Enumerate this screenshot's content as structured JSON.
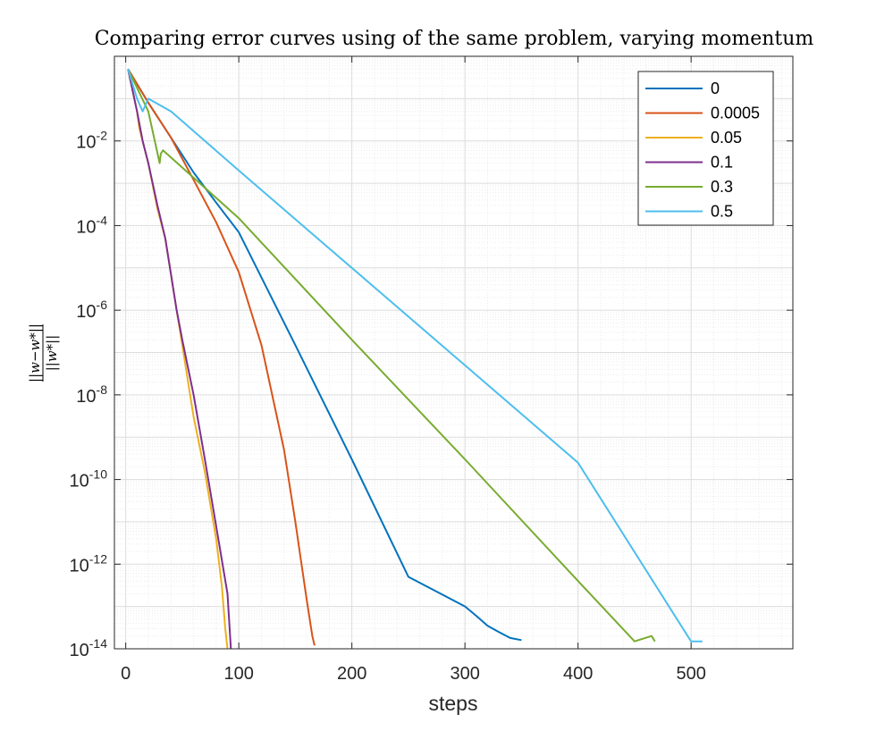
{
  "chart_data": {
    "type": "line",
    "title": "Comparing error curves using of the same problem, varying momentum",
    "xlabel": "steps",
    "ylabel_numerator": "||w−w*||",
    "ylabel_denominator": "||w*||",
    "xscale": "linear",
    "yscale": "log",
    "xlim": [
      -10,
      590
    ],
    "ylim": [
      1e-14,
      1
    ],
    "grid": "on (major + minor)",
    "legend_placement": "top-right",
    "x_ticks": [
      0,
      100,
      200,
      300,
      400,
      500
    ],
    "x_tick_labels": [
      "0",
      "100",
      "200",
      "300",
      "400",
      "500"
    ],
    "y_ticks": [
      -14,
      -12,
      -10,
      -8,
      -6,
      -4,
      -2
    ],
    "y_tick_labels": [
      {
        "base": "10",
        "exp": "-14"
      },
      {
        "base": "10",
        "exp": "-12"
      },
      {
        "base": "10",
        "exp": "-10"
      },
      {
        "base": "10",
        "exp": "-8"
      },
      {
        "base": "10",
        "exp": "-6"
      },
      {
        "base": "10",
        "exp": "-4"
      },
      {
        "base": "10",
        "exp": "-2"
      }
    ],
    "series": [
      {
        "name": "0",
        "color": "#0072BD",
        "x": [
          2,
          20,
          40,
          60,
          80,
          100,
          150,
          200,
          250,
          300,
          310,
          320,
          330,
          340,
          350
        ],
        "y": [
          0.5,
          0.08,
          0.012,
          0.0018,
          0.00035,
          7e-05,
          1.5e-07,
          3e-10,
          5e-13,
          1e-13,
          6e-14,
          3.5e-14,
          2.5e-14,
          1.8e-14,
          1.6e-14
        ]
      },
      {
        "name": "0.0005",
        "color": "#D95319",
        "x": [
          2,
          20,
          40,
          60,
          80,
          100,
          120,
          140,
          150,
          160,
          165,
          167
        ],
        "y": [
          0.5,
          0.08,
          0.012,
          0.0012,
          0.00012,
          8e-06,
          1.5e-07,
          5e-10,
          1e-11,
          1.5e-13,
          2e-14,
          1.2e-14
        ]
      },
      {
        "name": "0.05",
        "color": "#EDB120",
        "x": [
          2,
          10,
          12,
          20,
          28,
          35,
          40,
          45,
          50,
          60,
          70,
          80,
          85,
          88,
          90
        ],
        "y": [
          0.5,
          0.05,
          0.02,
          0.003,
          0.00025,
          5e-05,
          7e-06,
          1e-06,
          1.5e-07,
          3e-09,
          1.5e-10,
          4e-12,
          3e-13,
          3e-14,
          1e-14
        ]
      },
      {
        "name": "0.1",
        "color": "#7E2F8E",
        "x": [
          2,
          10,
          15,
          20,
          28,
          35,
          40,
          45,
          50,
          60,
          70,
          80,
          90,
          93
        ],
        "y": [
          0.5,
          0.05,
          0.01,
          0.003,
          0.0003,
          5e-05,
          7e-06,
          1e-06,
          2e-07,
          1e-08,
          3e-10,
          8e-12,
          2e-13,
          1e-14
        ]
      },
      {
        "name": "0.3",
        "color": "#77AC30",
        "x": [
          2,
          20,
          30,
          31,
          33,
          100,
          200,
          300,
          400,
          450,
          465,
          468
        ],
        "y": [
          0.5,
          0.05,
          0.003,
          0.005,
          0.006,
          0.00015,
          2e-07,
          3e-10,
          4e-13,
          1.5e-14,
          2e-14,
          1.5e-14
        ]
      },
      {
        "name": "0.5",
        "color": "#4DBEEE",
        "x": [
          2,
          10,
          15,
          20,
          40,
          100,
          200,
          300,
          400,
          500,
          510
        ],
        "y": [
          0.5,
          0.1,
          0.05,
          0.1,
          0.05,
          0.002,
          1e-05,
          5e-08,
          2.5e-10,
          1.5e-14,
          1.5e-14
        ]
      }
    ]
  }
}
